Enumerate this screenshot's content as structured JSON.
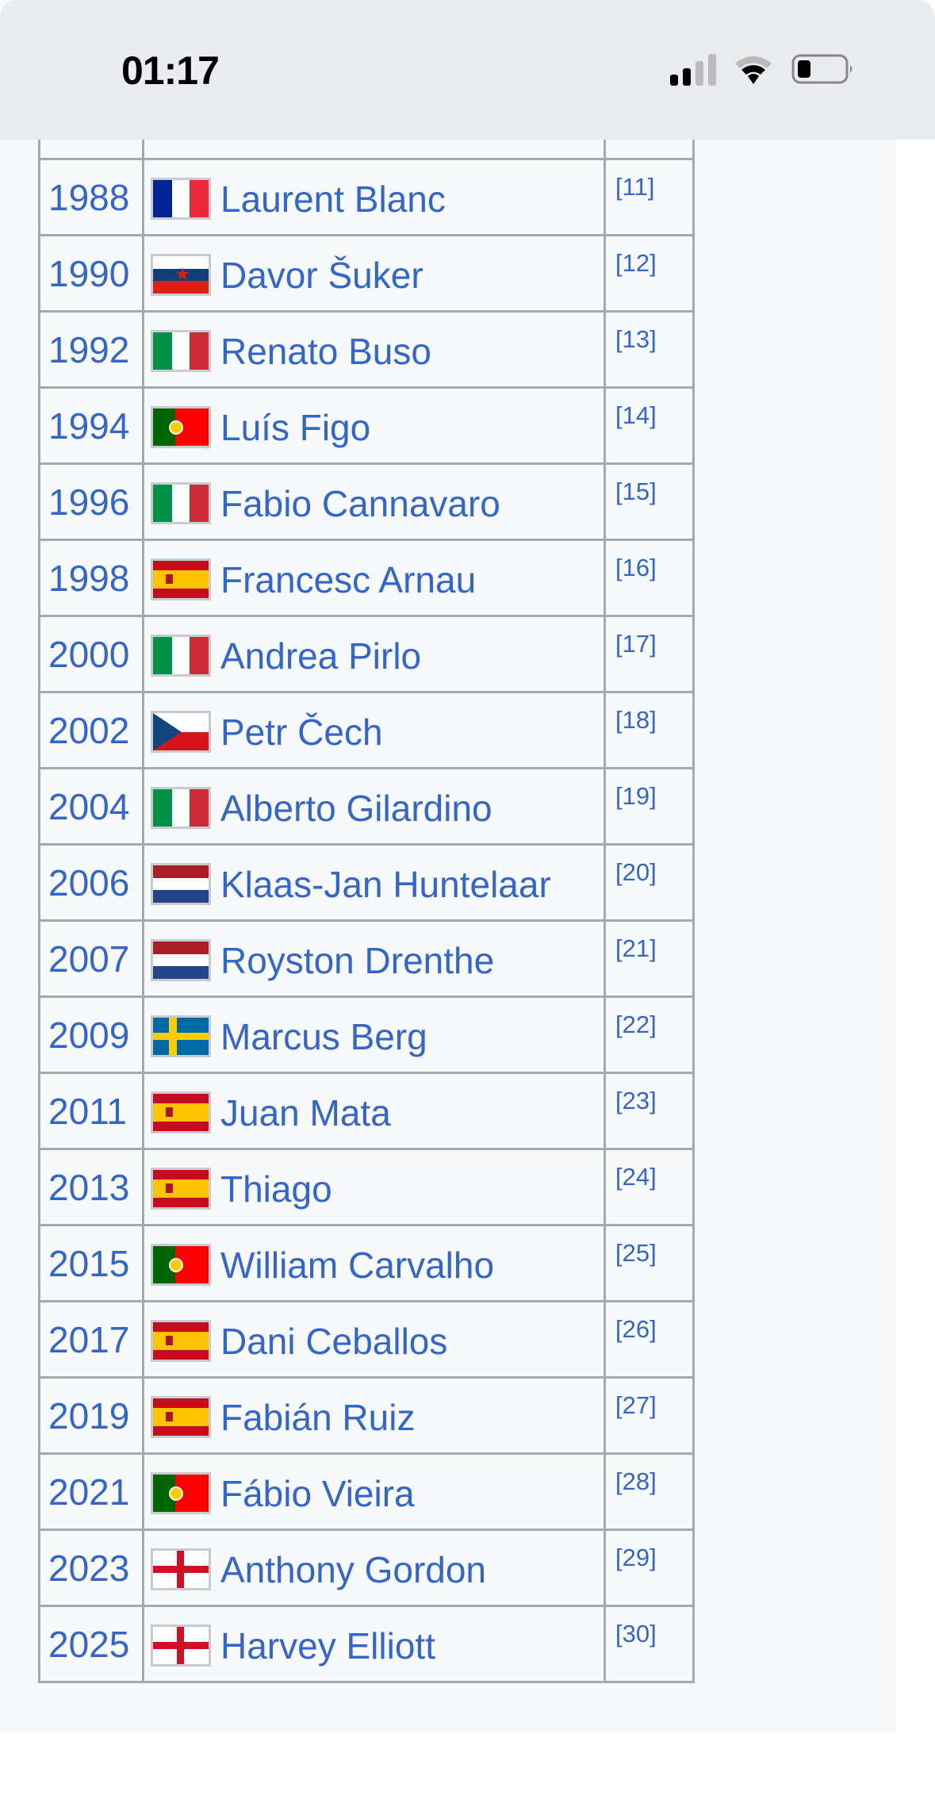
{
  "status_bar": {
    "time": "01:17",
    "signal_bars": 2,
    "battery_level": 0.25
  },
  "colors": {
    "link": "#3366cc",
    "border": "#a2a9b1",
    "panel": "#f8f9fa"
  },
  "rows": [
    {
      "year": "1988",
      "flag": "france",
      "name": "Laurent Blanc",
      "ref": "[11]"
    },
    {
      "year": "1990",
      "flag": "yugoslavia",
      "name": "Davor Šuker",
      "ref": "[12]"
    },
    {
      "year": "1992",
      "flag": "italy",
      "name": "Renato Buso",
      "ref": "[13]"
    },
    {
      "year": "1994",
      "flag": "portugal",
      "name": "Luís Figo",
      "ref": "[14]"
    },
    {
      "year": "1996",
      "flag": "italy",
      "name": "Fabio Cannavaro",
      "ref": "[15]"
    },
    {
      "year": "1998",
      "flag": "spain",
      "name": "Francesc Arnau",
      "ref": "[16]"
    },
    {
      "year": "2000",
      "flag": "italy",
      "name": "Andrea Pirlo",
      "ref": "[17]"
    },
    {
      "year": "2002",
      "flag": "czech",
      "name": "Petr Čech",
      "ref": "[18]"
    },
    {
      "year": "2004",
      "flag": "italy",
      "name": "Alberto Gilardino",
      "ref": "[19]"
    },
    {
      "year": "2006",
      "flag": "netherlands",
      "name": "Klaas-Jan Huntelaar",
      "ref": "[20]"
    },
    {
      "year": "2007",
      "flag": "netherlands",
      "name": "Royston Drenthe",
      "ref": "[21]"
    },
    {
      "year": "2009",
      "flag": "sweden",
      "name": "Marcus Berg",
      "ref": "[22]"
    },
    {
      "year": "2011",
      "flag": "spain",
      "name": "Juan Mata",
      "ref": "[23]"
    },
    {
      "year": "2013",
      "flag": "spain",
      "name": "Thiago",
      "ref": "[24]"
    },
    {
      "year": "2015",
      "flag": "portugal",
      "name": "William Carvalho",
      "ref": "[25]"
    },
    {
      "year": "2017",
      "flag": "spain",
      "name": "Dani Ceballos",
      "ref": "[26]"
    },
    {
      "year": "2019",
      "flag": "spain",
      "name": "Fabián Ruiz",
      "ref": "[27]"
    },
    {
      "year": "2021",
      "flag": "portugal",
      "name": "Fábio Vieira",
      "ref": "[28]"
    },
    {
      "year": "2023",
      "flag": "england",
      "name": "Anthony Gordon",
      "ref": "[29]"
    },
    {
      "year": "2025",
      "flag": "england",
      "name": "Harvey Elliott",
      "ref": "[30]"
    }
  ]
}
